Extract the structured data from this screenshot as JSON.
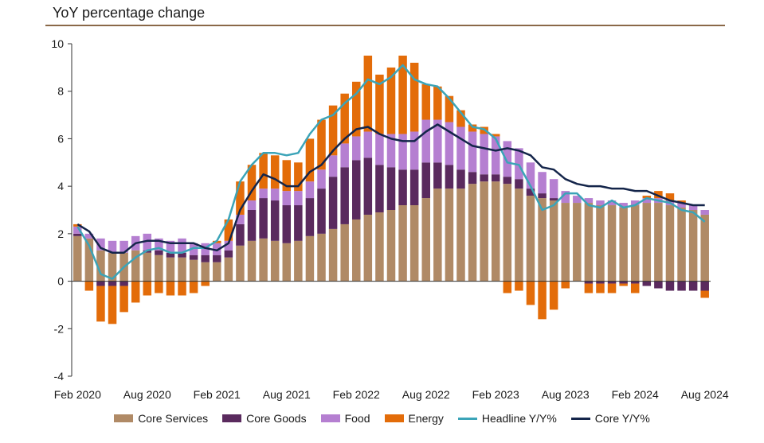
{
  "chart_data": {
    "type": "bar",
    "title": "YoY percentage change",
    "ylim": [
      -4,
      10
    ],
    "yticks": [
      -4,
      -2,
      0,
      2,
      4,
      6,
      8,
      10
    ],
    "x_tick_labels": [
      "Feb 2020",
      "Aug 2020",
      "Feb 2021",
      "Aug 2021",
      "Feb 2022",
      "Aug 2022",
      "Feb 2023",
      "Aug 2023",
      "Feb 2024",
      "Aug 2024"
    ],
    "categories": [
      "Feb 2020",
      "Mar 2020",
      "Apr 2020",
      "May 2020",
      "Jun 2020",
      "Jul 2020",
      "Aug 2020",
      "Sep 2020",
      "Oct 2020",
      "Nov 2020",
      "Dec 2020",
      "Jan 2021",
      "Feb 2021",
      "Mar 2021",
      "Apr 2021",
      "May 2021",
      "Jun 2021",
      "Jul 2021",
      "Aug 2021",
      "Sep 2021",
      "Oct 2021",
      "Nov 2021",
      "Dec 2021",
      "Jan 2022",
      "Feb 2022",
      "Mar 2022",
      "Apr 2022",
      "May 2022",
      "Jun 2022",
      "Jul 2022",
      "Aug 2022",
      "Sep 2022",
      "Oct 2022",
      "Nov 2022",
      "Dec 2022",
      "Jan 2023",
      "Feb 2023",
      "Mar 2023",
      "Apr 2023",
      "May 2023",
      "Jun 2023",
      "Jul 2023",
      "Aug 2023",
      "Sep 2023",
      "Oct 2023",
      "Nov 2023",
      "Dec 2023",
      "Jan 2024",
      "Feb 2024",
      "Mar 2024",
      "Apr 2024",
      "May 2024",
      "Jun 2024",
      "Jul 2024",
      "Aug 2024"
    ],
    "series": [
      {
        "name": "Core Services",
        "kind": "bar",
        "color": "#b08a66",
        "values": [
          1.9,
          1.8,
          1.3,
          1.2,
          1.2,
          1.3,
          1.2,
          1.1,
          1.0,
          1.0,
          0.9,
          0.8,
          0.8,
          1.0,
          1.5,
          1.7,
          1.8,
          1.7,
          1.6,
          1.7,
          1.9,
          2.0,
          2.2,
          2.4,
          2.6,
          2.8,
          2.9,
          3.0,
          3.2,
          3.2,
          3.5,
          3.9,
          3.9,
          3.9,
          4.1,
          4.2,
          4.2,
          4.1,
          3.9,
          3.6,
          3.5,
          3.4,
          3.3,
          3.3,
          3.3,
          3.2,
          3.2,
          3.1,
          3.2,
          3.3,
          3.3,
          3.2,
          3.1,
          3.0,
          2.8
        ]
      },
      {
        "name": "Core Goods",
        "kind": "bar",
        "color": "#5a2a5e",
        "values": [
          0.1,
          0.0,
          -0.2,
          -0.2,
          -0.2,
          0.0,
          0.1,
          0.2,
          0.2,
          0.2,
          0.2,
          0.3,
          0.3,
          0.3,
          0.9,
          1.3,
          1.7,
          1.7,
          1.6,
          1.5,
          1.6,
          1.9,
          2.2,
          2.4,
          2.5,
          2.4,
          2.0,
          1.8,
          1.5,
          1.5,
          1.5,
          1.1,
          1.0,
          0.8,
          0.5,
          0.3,
          0.3,
          0.3,
          0.4,
          0.3,
          0.2,
          0.1,
          0.0,
          0.0,
          -0.1,
          -0.1,
          -0.1,
          -0.1,
          -0.1,
          -0.2,
          -0.3,
          -0.4,
          -0.4,
          -0.4,
          -0.4
        ]
      },
      {
        "name": "Food",
        "kind": "bar",
        "color": "#b57fd1",
        "values": [
          0.3,
          0.2,
          0.5,
          0.5,
          0.5,
          0.6,
          0.7,
          0.5,
          0.5,
          0.6,
          0.5,
          0.5,
          0.5,
          0.4,
          0.4,
          0.4,
          0.4,
          0.5,
          0.6,
          0.6,
          0.7,
          0.8,
          0.9,
          1.0,
          1.0,
          1.1,
          1.3,
          1.4,
          1.5,
          1.6,
          1.8,
          1.8,
          1.8,
          1.8,
          1.7,
          1.7,
          1.6,
          1.5,
          1.3,
          1.1,
          0.9,
          0.8,
          0.5,
          0.3,
          0.2,
          0.2,
          0.2,
          0.2,
          0.2,
          0.2,
          0.2,
          0.2,
          0.2,
          0.2,
          0.2
        ]
      },
      {
        "name": "Energy",
        "kind": "bar",
        "color": "#e36c09",
        "values": [
          0.1,
          -0.4,
          -1.5,
          -1.6,
          -1.1,
          -0.9,
          -0.6,
          -0.5,
          -0.6,
          -0.6,
          -0.5,
          -0.2,
          0.1,
          0.9,
          1.4,
          1.5,
          1.5,
          1.4,
          1.3,
          1.2,
          1.8,
          2.1,
          2.1,
          2.1,
          2.3,
          3.2,
          2.5,
          2.8,
          3.3,
          2.9,
          1.5,
          1.4,
          1.1,
          0.7,
          0.3,
          0.3,
          0.1,
          -0.5,
          -0.4,
          -1.0,
          -1.6,
          -1.2,
          -0.3,
          0.0,
          -0.4,
          -0.4,
          -0.4,
          -0.1,
          -0.4,
          0.1,
          0.3,
          0.3,
          0.1,
          0.0,
          -0.3
        ]
      },
      {
        "name": "Headline Y/Y%",
        "kind": "line",
        "color": "#3ba4b8",
        "values": [
          2.3,
          1.5,
          0.3,
          0.1,
          0.6,
          1.0,
          1.3,
          1.4,
          1.2,
          1.2,
          1.4,
          1.4,
          1.7,
          2.6,
          4.2,
          4.9,
          5.4,
          5.4,
          5.3,
          5.4,
          6.2,
          6.8,
          7.0,
          7.5,
          7.9,
          8.5,
          8.3,
          8.6,
          9.1,
          8.5,
          8.3,
          8.2,
          7.7,
          7.1,
          6.5,
          6.4,
          6.0,
          5.0,
          4.9,
          4.0,
          3.0,
          3.2,
          3.7,
          3.7,
          3.2,
          3.1,
          3.4,
          3.1,
          3.2,
          3.5,
          3.4,
          3.3,
          3.0,
          2.9,
          2.5
        ]
      },
      {
        "name": "Core Y/Y%",
        "kind": "line",
        "color": "#14254a",
        "values": [
          2.4,
          2.1,
          1.4,
          1.2,
          1.2,
          1.6,
          1.7,
          1.7,
          1.6,
          1.6,
          1.6,
          1.4,
          1.3,
          1.6,
          3.0,
          3.8,
          4.5,
          4.3,
          4.0,
          4.0,
          4.6,
          4.9,
          5.5,
          6.0,
          6.4,
          6.5,
          6.2,
          6.0,
          5.9,
          5.9,
          6.3,
          6.6,
          6.3,
          6.0,
          5.7,
          5.6,
          5.5,
          5.6,
          5.5,
          5.3,
          4.8,
          4.7,
          4.3,
          4.1,
          4.0,
          4.0,
          3.9,
          3.9,
          3.8,
          3.8,
          3.6,
          3.4,
          3.3,
          3.2,
          3.2
        ]
      }
    ]
  }
}
